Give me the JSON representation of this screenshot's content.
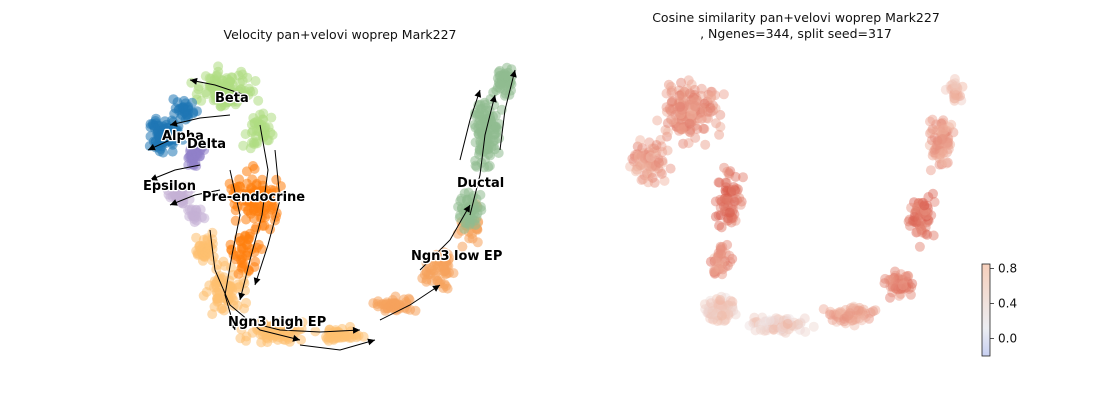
{
  "panels": {
    "left": {
      "title": "Velocity pan+velovi woprep Mark227"
    },
    "right": {
      "title_line1": "Cosine similarity pan+velovi woprep Mark227",
      "title_line2": ", Ngenes=344, split seed=317"
    }
  },
  "chart_data": [
    {
      "type": "scatter",
      "subtype": "embedding-with-velocity-streamlines",
      "title": "Velocity pan+velovi woprep Mark227",
      "xlabel": "",
      "ylabel": "",
      "axes_visible": false,
      "grid": false,
      "clusters": [
        {
          "name": "Beta",
          "color": "#aedd82"
        },
        {
          "name": "Alpha",
          "color": "#1f77b4"
        },
        {
          "name": "Delta",
          "color": "#8f7fc9"
        },
        {
          "name": "Epsilon",
          "color": "#c5b0d5"
        },
        {
          "name": "Pre-endocrine",
          "color": "#ff7f0e"
        },
        {
          "name": "Ductal",
          "color": "#8fbc8f"
        },
        {
          "name": "Ngn3 low EP",
          "color": "#f5a25d"
        },
        {
          "name": "Ngn3 high EP",
          "color": "#fdbf6f"
        }
      ]
    },
    {
      "type": "scatter",
      "subtype": "embedding-colored-by-value",
      "title": "Cosine similarity pan+velovi woprep Mark227\n, Ngenes=344, split seed=317",
      "axes_visible": false,
      "grid": false,
      "colorbar": {
        "ticks": [
          "0.8",
          "0.4",
          "0.0"
        ],
        "range": [
          -0.2,
          0.85
        ],
        "cmap": "coolwarm"
      }
    }
  ]
}
